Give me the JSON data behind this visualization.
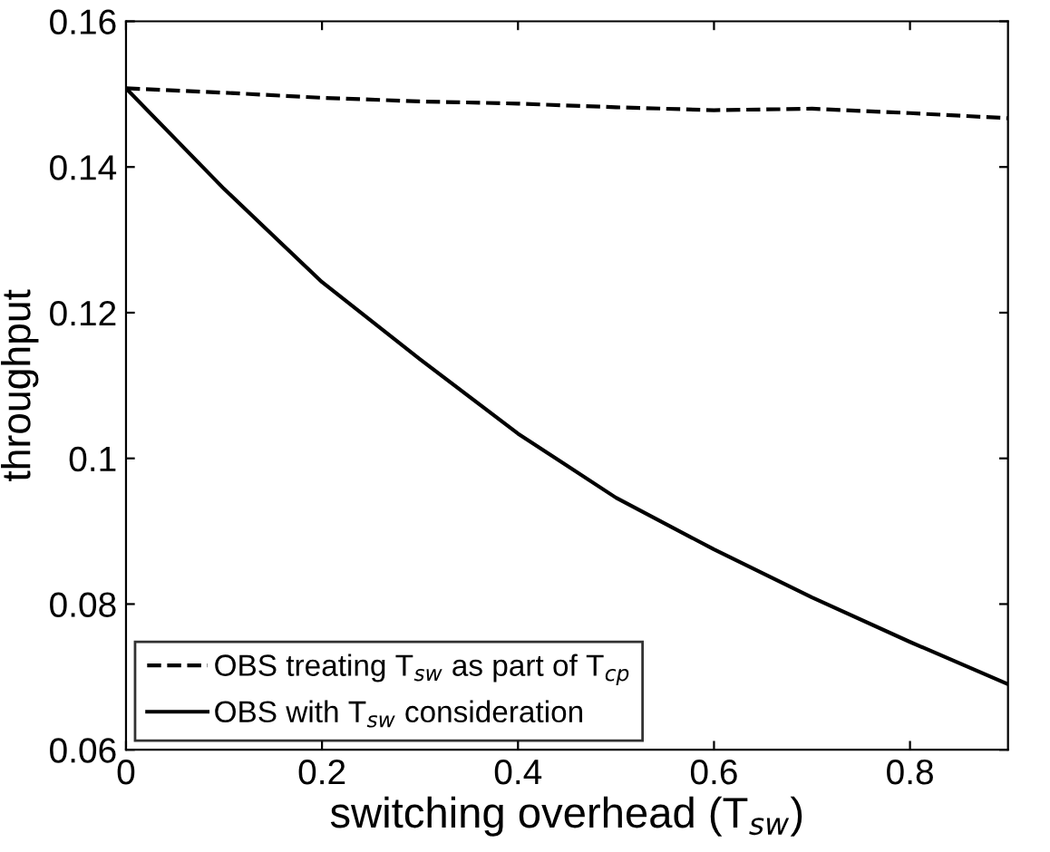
{
  "chart_data": {
    "type": "line",
    "xlabel": "switching overhead (T$_{sw}$)",
    "ylabel": "throughput",
    "x": [
      0,
      0.1,
      0.2,
      0.3,
      0.4,
      0.5,
      0.6,
      0.7,
      0.8,
      0.9
    ],
    "series": [
      {
        "name": "OBS treating T$_{sw}$ as part of T$_{cp}$",
        "color": "#000000",
        "line_style": "dashed",
        "values": [
          0.1508,
          0.1502,
          0.1495,
          0.149,
          0.1487,
          0.1482,
          0.1478,
          0.148,
          0.1474,
          0.1467
        ]
      },
      {
        "name": "OBS with T$_{sw}$ consideration",
        "color": "#000000",
        "line_style": "solid",
        "values": [
          0.1508,
          0.137,
          0.1242,
          0.1136,
          0.1034,
          0.0946,
          0.0875,
          0.0809,
          0.0748,
          0.069
        ]
      }
    ],
    "xlim": [
      0,
      0.9
    ],
    "ylim": [
      0.06,
      0.16
    ],
    "xticks": [
      0,
      0.2,
      0.4,
      0.6,
      0.8
    ],
    "yticks": [
      0.06,
      0.08,
      {
        "value": 0.1,
        "label": "0.1"
      },
      0.12,
      0.14,
      0.16
    ],
    "grid": false,
    "legend": "bottom left",
    "marker": "none"
  }
}
